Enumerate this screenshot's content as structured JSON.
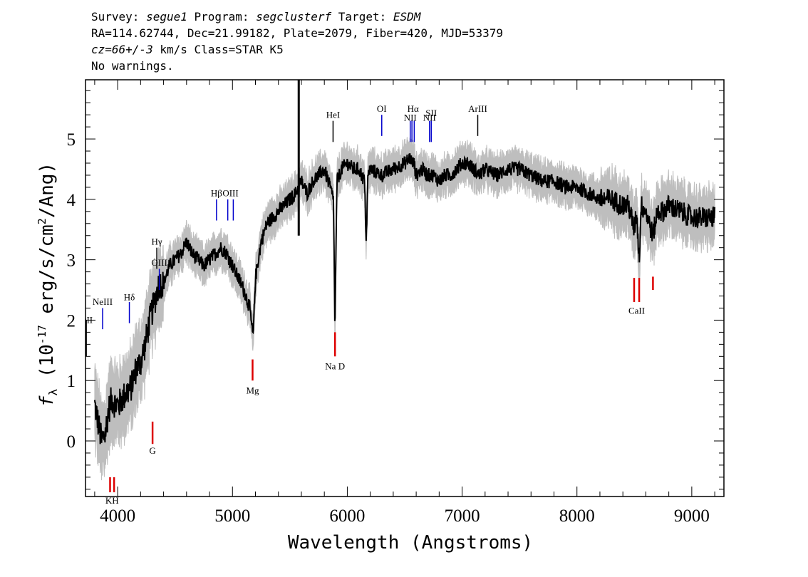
{
  "header": {
    "survey_label": "Survey: ",
    "survey": "segue1",
    "program_label": " Program: ",
    "program": "segclusterf",
    "target_label": " Target: ",
    "target": "ESDM",
    "line2": "RA=114.62744, Dec=21.99182, Plate=2079, Fiber=420, MJD=53379",
    "cz_value": "cz=66+/-3",
    "cz_rest": " km/s Class=STAR K5",
    "line4": "No warnings."
  },
  "chart_data": {
    "type": "line",
    "xlabel": "Wavelength (Angstroms)",
    "ylabel_prefix": "f",
    "ylabel_sub": "λ",
    "ylabel_rest": " (10",
    "ylabel_exp": "-17",
    "ylabel_units": " erg/s/cm",
    "ylabel_exp2": "2",
    "ylabel_tail": "/Ang)",
    "xlim": [
      3720,
      9280
    ],
    "ylim": [
      -0.92,
      5.98
    ],
    "x_ticks": [
      4000,
      5000,
      6000,
      7000,
      8000,
      9000
    ],
    "x_tick_labels": [
      "4000",
      "5000",
      "6000",
      "7000",
      "8000",
      "9000"
    ],
    "y_ticks": [
      0,
      1,
      2,
      3,
      4,
      5
    ],
    "y_tick_labels": [
      "0",
      "1",
      "2",
      "3",
      "4",
      "5"
    ],
    "colors": {
      "flux": "#000000",
      "noise": "#bebebe",
      "emission": "#0000cc",
      "absorption": "#dd0000",
      "marker": "#000000"
    },
    "series": [
      {
        "style": "flux",
        "x": [
          3800,
          3830,
          3860,
          3890,
          3920,
          3950,
          3980,
          4010,
          4040,
          4080,
          4120,
          4160,
          4200,
          4240,
          4280,
          4320,
          4360,
          4400,
          4450,
          4500,
          4550,
          4600,
          4650,
          4700,
          4750,
          4800,
          4850,
          4900,
          4950,
          5000,
          5050,
          5100,
          5150,
          5180,
          5200,
          5250,
          5300,
          5350,
          5400,
          5450,
          5500,
          5550,
          5600,
          5650,
          5700,
          5750,
          5800,
          5850,
          5880,
          5892,
          5910,
          5950,
          6000,
          6050,
          6100,
          6150,
          6165,
          6180,
          6200,
          6300,
          6400,
          6500,
          6550,
          6563,
          6580,
          6600,
          6650,
          6700,
          6750,
          6800,
          6850,
          6900,
          6950,
          7000,
          7050,
          7100,
          7150,
          7200,
          7300,
          7400,
          7500,
          7600,
          7700,
          7800,
          7900,
          8000,
          8100,
          8200,
          8300,
          8400,
          8450,
          8498,
          8520,
          8542,
          8560,
          8600,
          8662,
          8700,
          8750,
          8800,
          8900,
          9000,
          9100,
          9200
        ],
        "y": [
          0.6,
          0.3,
          0.0,
          0.1,
          0.5,
          0.7,
          0.6,
          0.6,
          0.7,
          0.8,
          0.9,
          1.2,
          1.3,
          1.6,
          2.0,
          2.3,
          2.6,
          2.6,
          2.9,
          3.0,
          3.1,
          3.3,
          3.1,
          3.0,
          2.9,
          3.0,
          3.1,
          3.2,
          3.1,
          2.9,
          2.7,
          2.5,
          2.2,
          1.7,
          2.7,
          3.3,
          3.6,
          3.7,
          3.8,
          3.9,
          4.0,
          4.1,
          4.3,
          4.1,
          4.3,
          4.4,
          4.5,
          4.2,
          4.0,
          1.8,
          4.3,
          4.5,
          4.6,
          4.5,
          4.5,
          4.3,
          3.3,
          4.4,
          4.5,
          4.4,
          4.5,
          4.6,
          4.7,
          4.6,
          4.6,
          4.4,
          4.5,
          4.4,
          4.4,
          4.3,
          4.4,
          4.4,
          4.5,
          4.6,
          4.6,
          4.5,
          4.4,
          4.5,
          4.4,
          4.5,
          4.5,
          4.4,
          4.3,
          4.3,
          4.2,
          4.2,
          4.1,
          4.0,
          4.0,
          3.9,
          3.9,
          3.5,
          3.8,
          3.0,
          3.9,
          3.8,
          3.4,
          3.8,
          3.8,
          3.9,
          3.8,
          3.7,
          3.7,
          3.7
        ]
      }
    ],
    "spike": {
      "x": 5577,
      "y_top": 6.1
    },
    "line_markers": [
      {
        "label": "KH",
        "x": [
          3934,
          3969
        ],
        "y1": -0.85,
        "y2": -0.6,
        "color": "absorption",
        "label_y": -0.87,
        "label_pos": "below"
      },
      {
        "label": "G",
        "x": [
          4304
        ],
        "y1": -0.05,
        "y2": 0.32,
        "color": "absorption",
        "label_y": -0.05,
        "label_pos": "below"
      },
      {
        "label": "Mg",
        "x": [
          5175
        ],
        "y1": 1.0,
        "y2": 1.35,
        "color": "absorption",
        "label_y": 0.95,
        "label_pos": "below"
      },
      {
        "label": "Na D",
        "x": [
          5893
        ],
        "y1": 1.4,
        "y2": 1.8,
        "color": "absorption",
        "label_y": 1.35,
        "label_pos": "below"
      },
      {
        "label": "CaII",
        "x": [
          8498,
          8542
        ],
        "y1": 2.3,
        "y2": 2.7,
        "color": "absorption",
        "label_y": 2.27,
        "label_pos": "below"
      },
      {
        "label": "",
        "x": [
          8662
        ],
        "y1": 2.5,
        "y2": 2.72,
        "color": "absorption"
      },
      {
        "label": "OII",
        "x": [
          3727
        ],
        "y1": 1.4,
        "y2": 2.0,
        "color": "marker",
        "label_y": 1.95,
        "label_pos": "above"
      },
      {
        "label": "NeIII",
        "x": [
          3869
        ],
        "y1": 1.85,
        "y2": 2.2,
        "color": "emission",
        "label_y": 2.25,
        "label_pos": "above"
      },
      {
        "label": "Hδ",
        "x": [
          4102
        ],
        "y1": 1.95,
        "y2": 2.3,
        "color": "emission",
        "label_y": 2.33,
        "label_pos": "above"
      },
      {
        "label": "Hγ",
        "x": [
          4341
        ],
        "y1": 2.85,
        "y2": 3.2,
        "color": "marker",
        "label_y": 3.25,
        "label_pos": "above"
      },
      {
        "label": "OIII",
        "x": [
          4363
        ],
        "y1": 2.5,
        "y2": 2.85,
        "color": "emission",
        "label_y": 2.9,
        "label_pos": "above"
      },
      {
        "label": "Hβ",
        "x": [
          4861
        ],
        "y1": 3.65,
        "y2": 4.0,
        "color": "emission",
        "label_y": 4.05,
        "label_pos": "above"
      },
      {
        "label": "OIII",
        "x": [
          4959,
          5007
        ],
        "y1": 3.65,
        "y2": 4.0,
        "color": "emission",
        "label_y": 4.05,
        "label_pos": "above"
      },
      {
        "label": "HeI",
        "x": [
          5876
        ],
        "y1": 4.95,
        "y2": 5.3,
        "color": "marker",
        "label_y": 5.35,
        "label_pos": "above"
      },
      {
        "label": "OI",
        "x": [
          6300
        ],
        "y1": 5.05,
        "y2": 5.4,
        "color": "emission",
        "label_y": 5.45,
        "label_pos": "above"
      },
      {
        "label": "NII",
        "x": [
          6548
        ],
        "y1": 4.95,
        "y2": 5.3,
        "color": "emission",
        "label_y": 5.3,
        "label_pos": "above-left"
      },
      {
        "label": "Hα",
        "x": [
          6563,
          6583
        ],
        "y1": 4.95,
        "y2": 5.3,
        "color": "emission",
        "label_y": 5.45,
        "label_pos": "above"
      },
      {
        "label": "NII",
        "x": [
          6716
        ],
        "y1": 4.95,
        "y2": 5.3,
        "color": "emission",
        "label_y": 5.3,
        "label_pos": "above"
      },
      {
        "label": "SII",
        "x": [
          6731
        ],
        "y1": 4.95,
        "y2": 5.3,
        "color": "emission",
        "label_y": 5.38,
        "label_pos": "above"
      },
      {
        "label": "ArIII",
        "x": [
          7136
        ],
        "y1": 5.05,
        "y2": 5.4,
        "color": "marker",
        "label_y": 5.45,
        "label_pos": "above"
      }
    ]
  }
}
